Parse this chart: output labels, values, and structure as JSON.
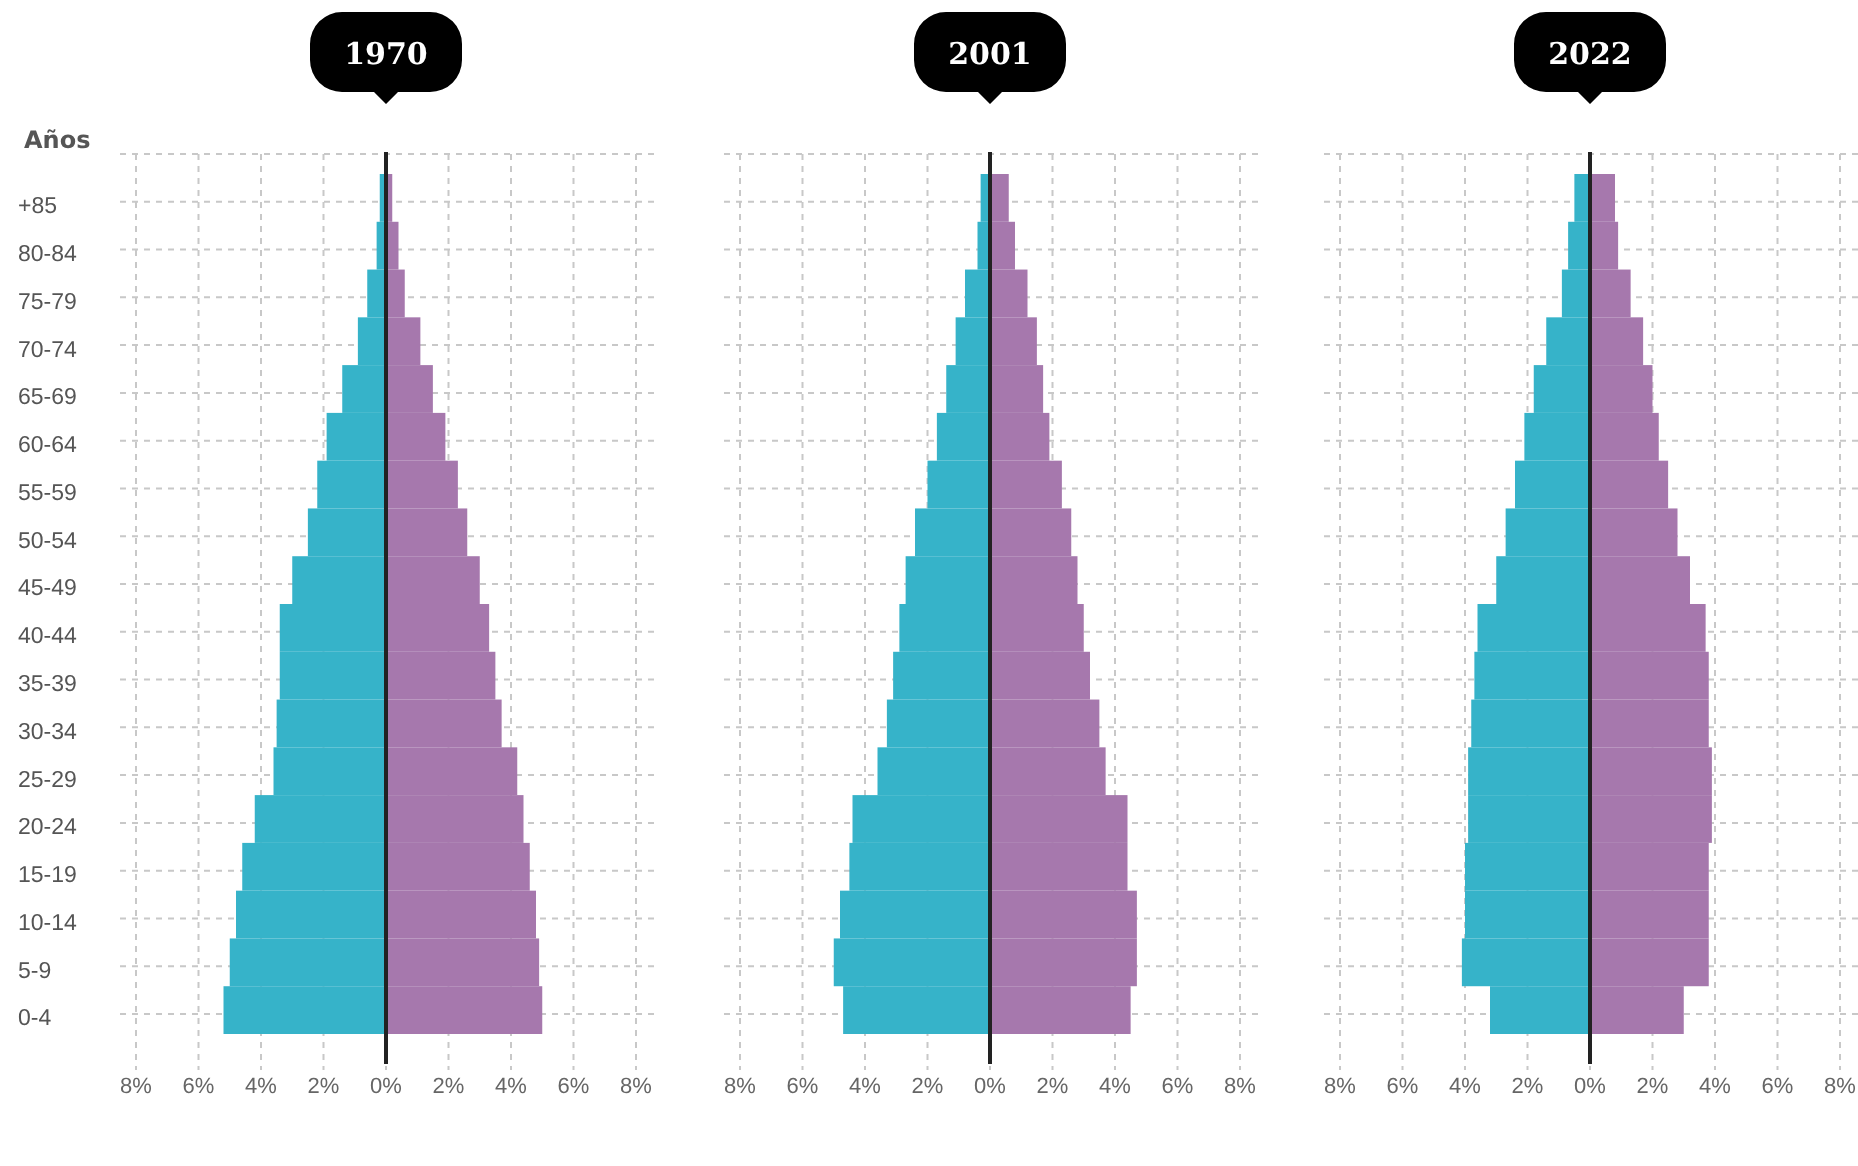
{
  "chart_data": [
    {
      "type": "bar",
      "orientation": "horizontal",
      "stacked": true,
      "title": "1970",
      "ylabel": "Años",
      "grid": true,
      "categories": [
        "+85",
        "80-84",
        "75-79",
        "70-74",
        "65-69",
        "60-64",
        "55-59",
        "50-54",
        "45-49",
        "40-44",
        "35-39",
        "30-34",
        "25-29",
        "20-24",
        "15-19",
        "10-14",
        "5-9",
        "0-4"
      ],
      "xlim": [
        -8,
        8
      ],
      "xticks": [
        {
          "value": -8,
          "label": "8%"
        },
        {
          "value": -6,
          "label": "6%"
        },
        {
          "value": -4,
          "label": "4%"
        },
        {
          "value": -2,
          "label": "2%"
        },
        {
          "value": 0,
          "label": "0%"
        },
        {
          "value": 2,
          "label": "2%"
        },
        {
          "value": 4,
          "label": "4%"
        },
        {
          "value": 6,
          "label": "6%"
        },
        {
          "value": 8,
          "label": "8%"
        }
      ],
      "series": [
        {
          "color": "#36b3c9",
          "values": [
            -0.2,
            -0.3,
            -0.6,
            -0.9,
            -1.4,
            -1.9,
            -2.2,
            -2.5,
            -3.0,
            -3.4,
            -3.4,
            -3.5,
            -3.6,
            -4.2,
            -4.6,
            -4.8,
            -5.0,
            -5.2
          ]
        },
        {
          "color": "#a678ad",
          "values": [
            0.2,
            0.4,
            0.6,
            1.1,
            1.5,
            1.9,
            2.3,
            2.6,
            3.0,
            3.3,
            3.5,
            3.7,
            4.2,
            4.4,
            4.6,
            4.8,
            4.9,
            5.0
          ]
        }
      ]
    },
    {
      "type": "bar",
      "orientation": "horizontal",
      "stacked": true,
      "title": "2001",
      "grid": true,
      "tick_labels": "x",
      "categories": [
        null,
        null,
        null,
        null,
        null,
        null,
        null,
        null,
        null,
        null,
        null,
        null,
        null,
        null,
        null,
        null,
        null,
        null
      ],
      "xlim": [
        -8,
        8
      ],
      "xticks": [
        {
          "value": -8,
          "label": "8%"
        },
        {
          "value": -6,
          "label": "6%"
        },
        {
          "value": -4,
          "label": "4%"
        },
        {
          "value": -2,
          "label": "2%"
        },
        {
          "value": 0,
          "label": "0%"
        },
        {
          "value": 2,
          "label": "2%"
        },
        {
          "value": 4,
          "label": "4%"
        },
        {
          "value": 6,
          "label": "6%"
        },
        {
          "value": 8,
          "label": "8%"
        }
      ],
      "series": [
        {
          "color": "#36b3c9",
          "values": [
            -0.3,
            -0.4,
            -0.8,
            -1.1,
            -1.4,
            -1.7,
            -2.0,
            -2.4,
            -2.7,
            -2.9,
            -3.1,
            -3.3,
            -3.6,
            -4.4,
            -4.5,
            -4.8,
            -5.0,
            -4.7
          ]
        },
        {
          "color": "#a678ad",
          "values": [
            0.6,
            0.8,
            1.2,
            1.5,
            1.7,
            1.9,
            2.3,
            2.6,
            2.8,
            3.0,
            3.2,
            3.5,
            3.7,
            4.4,
            4.4,
            4.7,
            4.7,
            4.5
          ]
        }
      ]
    },
    {
      "type": "bar",
      "orientation": "horizontal",
      "stacked": true,
      "title": "2022",
      "grid": true,
      "tick_labels": "x",
      "categories": [
        null,
        null,
        null,
        null,
        null,
        null,
        null,
        null,
        null,
        null,
        null,
        null,
        null,
        null,
        null,
        null,
        null,
        null
      ],
      "xlim": [
        -8,
        8
      ],
      "xticks": [
        {
          "value": -8,
          "label": "8%"
        },
        {
          "value": -6,
          "label": "6%"
        },
        {
          "value": -4,
          "label": "4%"
        },
        {
          "value": -2,
          "label": "2%"
        },
        {
          "value": 0,
          "label": "0%"
        },
        {
          "value": 2,
          "label": "2%"
        },
        {
          "value": 4,
          "label": "4%"
        },
        {
          "value": 6,
          "label": "6%"
        },
        {
          "value": 8,
          "label": "8%"
        }
      ],
      "series": [
        {
          "color": "#36b3c9",
          "values": [
            -0.5,
            -0.7,
            -0.9,
            -1.4,
            -1.8,
            -2.1,
            -2.4,
            -2.7,
            -3.0,
            -3.6,
            -3.7,
            -3.8,
            -3.9,
            -3.9,
            -4.0,
            -4.0,
            -4.1,
            -3.2
          ]
        },
        {
          "color": "#a678ad",
          "values": [
            0.8,
            0.9,
            1.3,
            1.7,
            2.0,
            2.2,
            2.5,
            2.8,
            3.2,
            3.7,
            3.8,
            3.8,
            3.9,
            3.9,
            3.8,
            3.8,
            3.8,
            3.0
          ]
        }
      ]
    }
  ]
}
